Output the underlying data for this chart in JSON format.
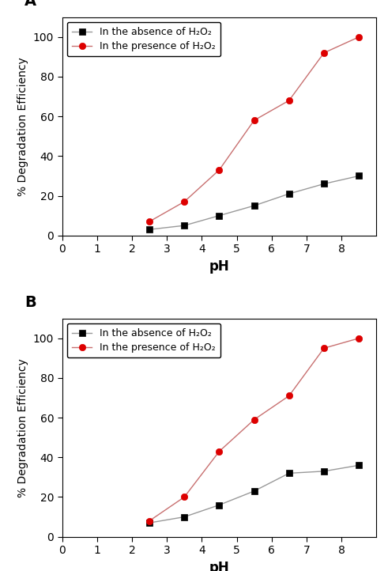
{
  "panel_A": {
    "label": "A",
    "absence_x": [
      2.5,
      3.5,
      4.5,
      5.5,
      6.5,
      7.5,
      8.5
    ],
    "absence_y": [
      3,
      5,
      10,
      15,
      21,
      26,
      30
    ],
    "presence_x": [
      2.5,
      3.5,
      4.5,
      5.5,
      6.5,
      7.5,
      8.5
    ],
    "presence_y": [
      7,
      17,
      33,
      58,
      68,
      92,
      100
    ]
  },
  "panel_B": {
    "label": "B",
    "absence_x": [
      2.5,
      3.5,
      4.5,
      5.5,
      6.5,
      7.5,
      8.5
    ],
    "absence_y": [
      7,
      10,
      16,
      23,
      32,
      33,
      36
    ],
    "presence_x": [
      2.5,
      3.5,
      4.5,
      5.5,
      6.5,
      7.5,
      8.5
    ],
    "presence_y": [
      8,
      20,
      43,
      59,
      71,
      95,
      100
    ]
  },
  "absence_line_color": "#999999",
  "absence_marker_color": "#000000",
  "presence_line_color": "#c87070",
  "presence_marker_color": "#dd0000",
  "marker_absence": "s",
  "marker_presence": "o",
  "marker_size": 6,
  "line_width": 1.0,
  "xlabel": "pH",
  "ylabel": "% Degradation Efficiency",
  "xlim": [
    0,
    9
  ],
  "ylim": [
    0,
    110
  ],
  "xticks": [
    0,
    1,
    2,
    3,
    4,
    5,
    6,
    7,
    8
  ],
  "yticks": [
    0,
    20,
    40,
    60,
    80,
    100
  ],
  "legend_absence": "In the absence of H₂O₂",
  "legend_presence": "In the presence of H₂O₂",
  "xlabel_fontsize": 12,
  "ylabel_fontsize": 10,
  "tick_fontsize": 10,
  "legend_fontsize": 9,
  "label_fontsize": 14,
  "background_color": "#ffffff"
}
